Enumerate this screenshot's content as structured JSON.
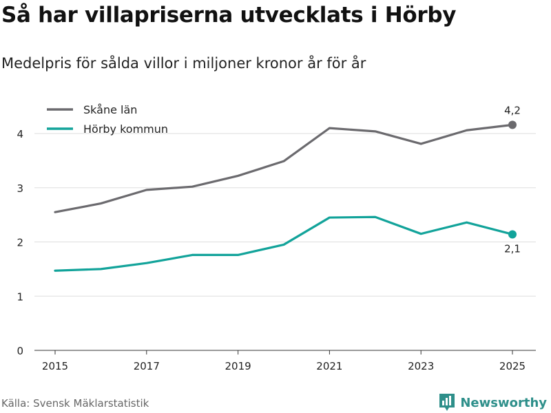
{
  "header": {
    "title": "Så har villapriserna utvecklats i Hörby",
    "subtitle": "Medelpris för sålda villor i miljoner kronor år för år"
  },
  "footer": {
    "source": "Källa: Svensk Mäklarstatistik",
    "brand": "Newsworthy"
  },
  "colors": {
    "grid": "#dddddd",
    "axis": "#333333",
    "brand": "#2e8f8a"
  },
  "chart_data": {
    "type": "line",
    "title": "Så har villapriserna utvecklats i Hörby",
    "subtitle": "Medelpris för sålda villor i miljoner kronor år för år",
    "xlabel": "",
    "ylabel": "",
    "x": [
      2015,
      2016,
      2017,
      2018,
      2019,
      2020,
      2021,
      2022,
      2023,
      2024,
      2025
    ],
    "xticks": [
      "2015",
      "2017",
      "2019",
      "2021",
      "2023",
      "2025"
    ],
    "yticks": [
      "0",
      "1",
      "2",
      "3",
      "4"
    ],
    "xlim": [
      2015,
      2025
    ],
    "ylim": [
      0,
      4.5
    ],
    "grid": true,
    "legend_position": "top-left",
    "series": [
      {
        "name": "Skåne län",
        "color": "#6b6a6e",
        "values": [
          2.55,
          2.71,
          2.96,
          3.02,
          3.22,
          3.49,
          4.1,
          4.04,
          3.81,
          4.06,
          4.16
        ],
        "end_label": "4,2",
        "end_label_position": "above"
      },
      {
        "name": "Hörby kommun",
        "color": "#12a39a",
        "values": [
          1.47,
          1.5,
          1.61,
          1.76,
          1.76,
          1.95,
          2.45,
          2.46,
          2.15,
          2.36,
          2.14
        ],
        "end_label": "2,1",
        "end_label_position": "below"
      }
    ]
  }
}
